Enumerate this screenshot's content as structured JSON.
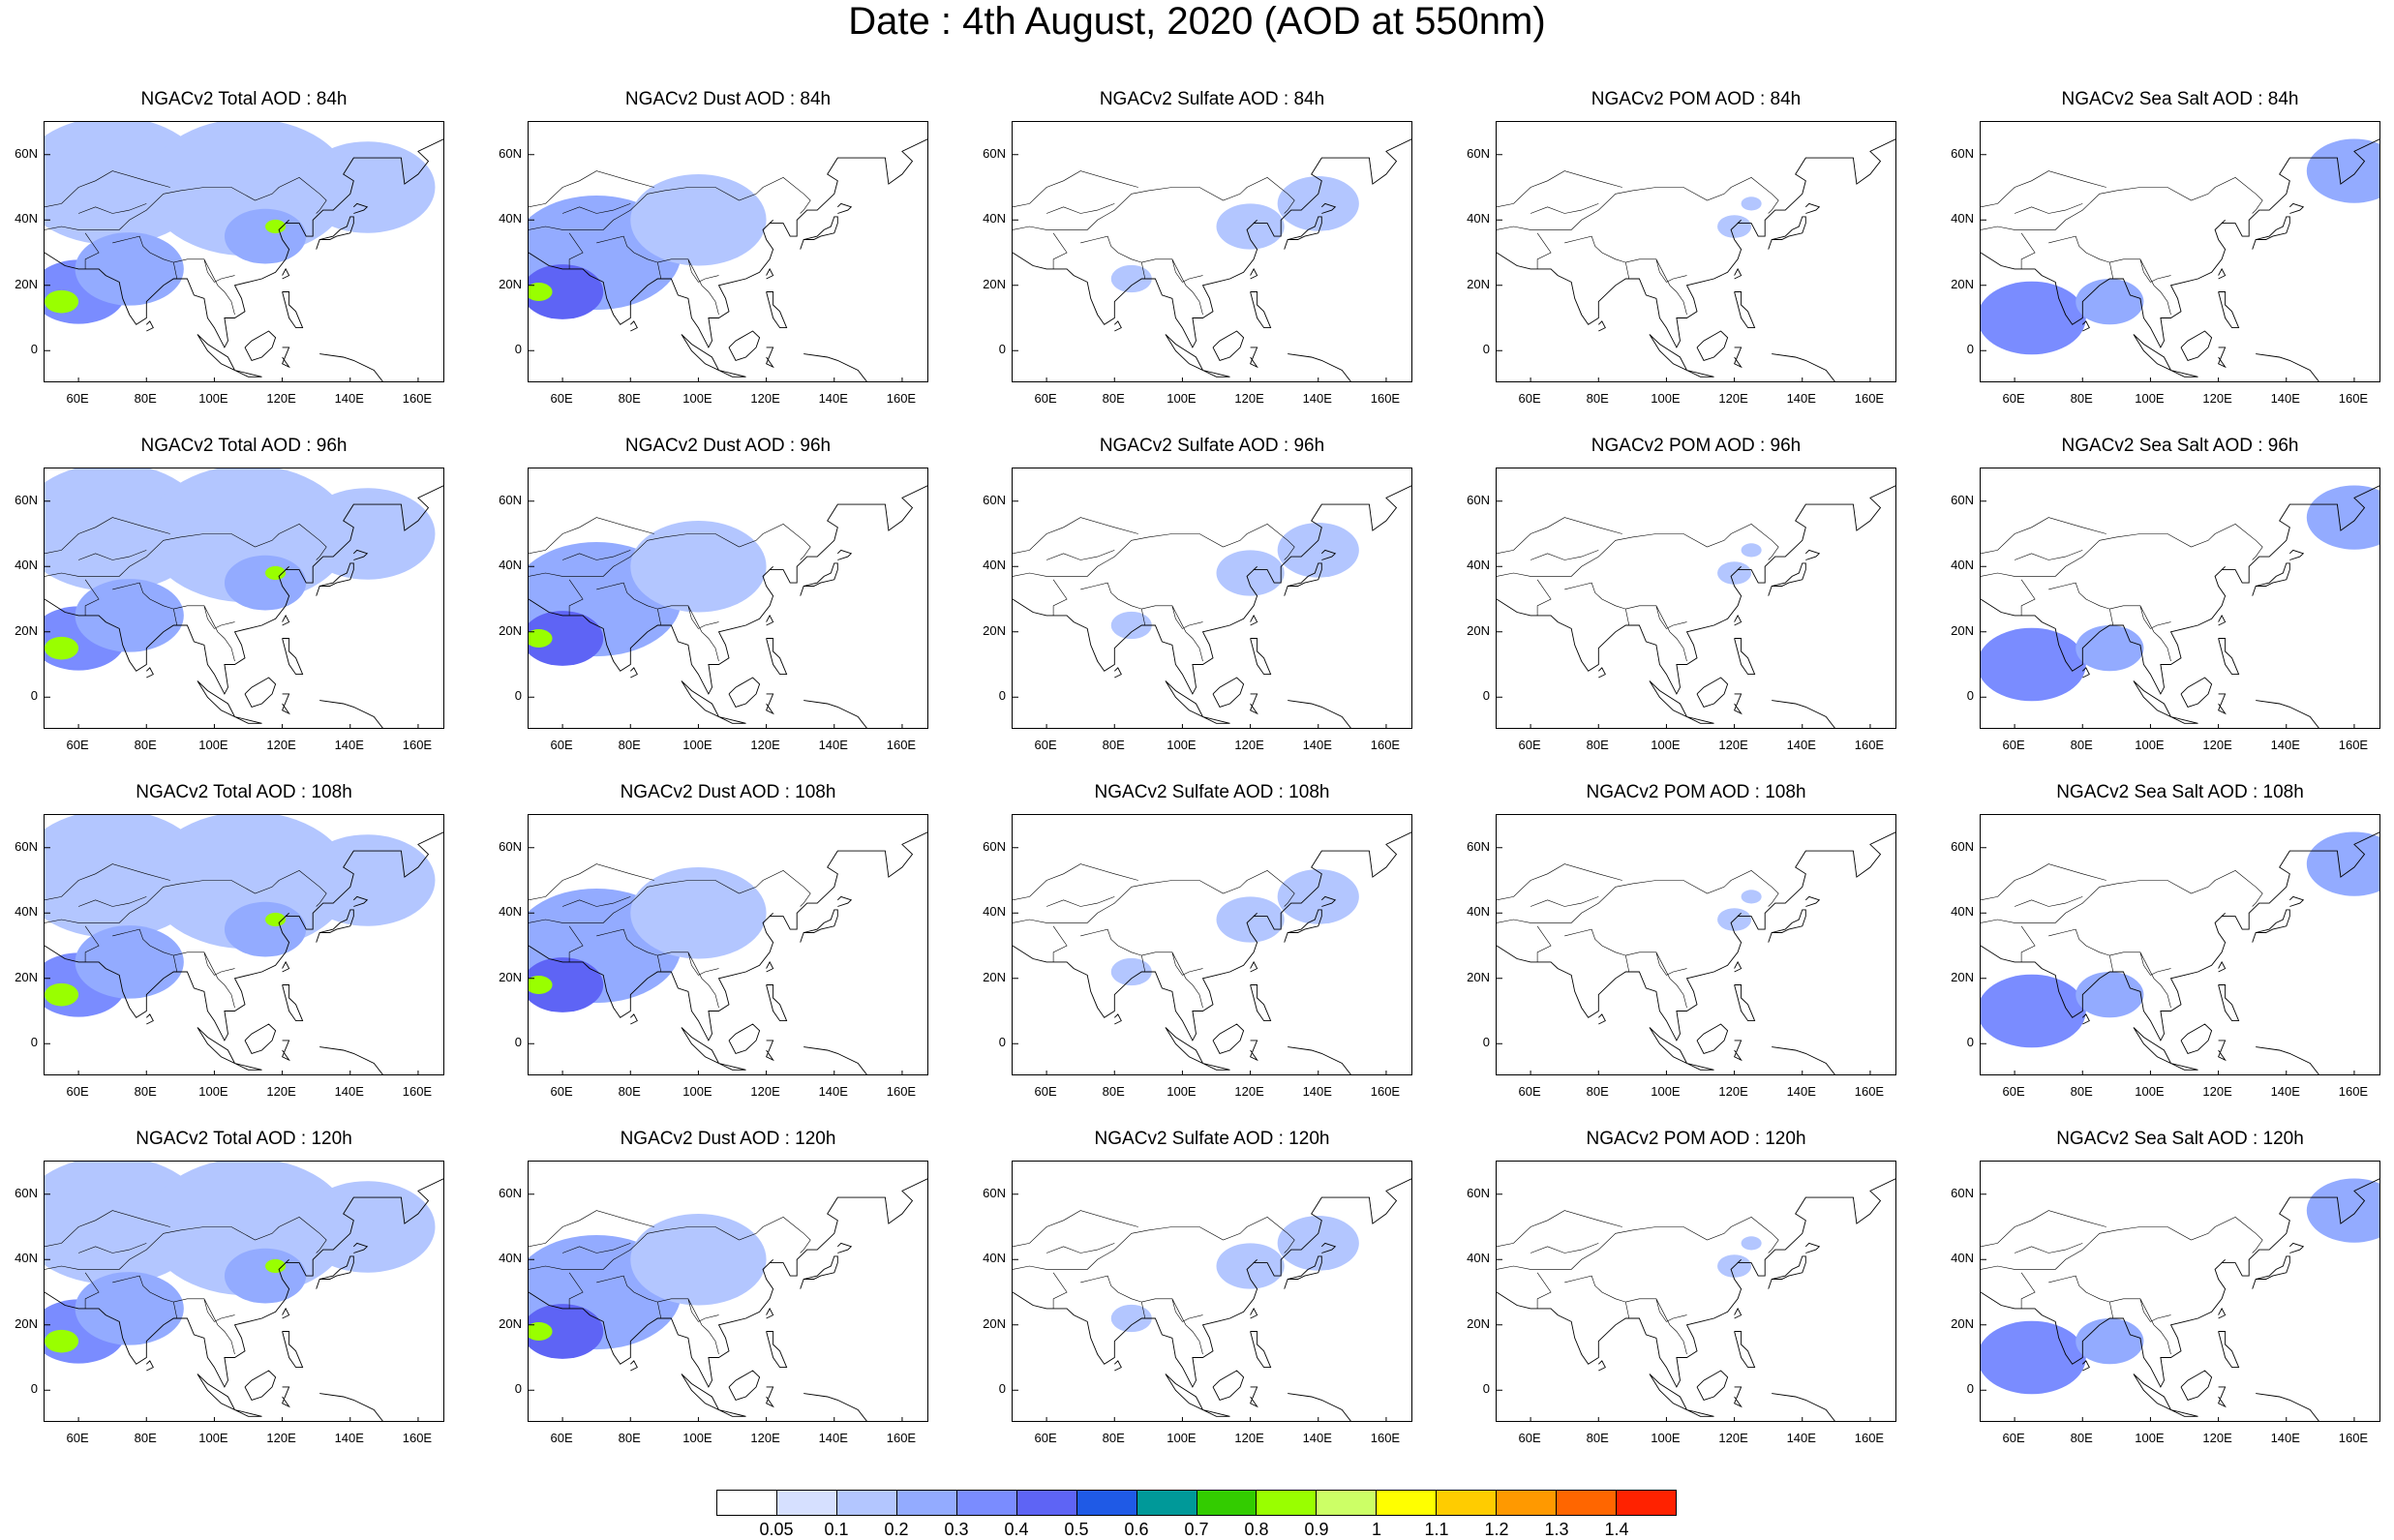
{
  "title": "Date : 4th August, 2020 (AOD at 550nm)",
  "rows": [
    {
      "lead": "84h",
      "panels": [
        {
          "title": "NGACv2 Total AOD : 84h",
          "species": "total"
        },
        {
          "title": "NGACv2 Dust AOD : 84h",
          "species": "dust"
        },
        {
          "title": "NGACv2 Sulfate AOD : 84h",
          "species": "sulfate"
        },
        {
          "title": "NGACv2 POM AOD : 84h",
          "species": "pom"
        },
        {
          "title": "NGACv2 Sea Salt AOD : 84h",
          "species": "seasalt"
        }
      ]
    },
    {
      "lead": "96h",
      "panels": [
        {
          "title": "NGACv2 Total AOD : 96h",
          "species": "total"
        },
        {
          "title": "NGACv2 Dust AOD : 96h",
          "species": "dust"
        },
        {
          "title": "NGACv2 Sulfate AOD : 96h",
          "species": "sulfate"
        },
        {
          "title": "NGACv2 POM AOD : 96h",
          "species": "pom"
        },
        {
          "title": "NGACv2 Sea Salt AOD : 96h",
          "species": "seasalt"
        }
      ]
    },
    {
      "lead": "108h",
      "panels": [
        {
          "title": "NGACv2 Total AOD : 108h",
          "species": "total"
        },
        {
          "title": "NGACv2 Dust AOD : 108h",
          "species": "dust"
        },
        {
          "title": "NGACv2 Sulfate AOD : 108h",
          "species": "sulfate"
        },
        {
          "title": "NGACv2 POM AOD : 108h",
          "species": "pom"
        },
        {
          "title": "NGACv2 Sea Salt AOD : 108h",
          "species": "seasalt"
        }
      ]
    },
    {
      "lead": "120h",
      "panels": [
        {
          "title": "NGACv2 Total AOD : 120h",
          "species": "total"
        },
        {
          "title": "NGACv2 Dust AOD : 120h",
          "species": "dust"
        },
        {
          "title": "NGACv2 Sulfate AOD : 120h",
          "species": "sulfate"
        },
        {
          "title": "NGACv2 POM AOD : 120h",
          "species": "pom"
        },
        {
          "title": "NGACv2 Sea Salt  AOD : 120h",
          "species": "seasalt"
        }
      ]
    }
  ],
  "map_extent": {
    "lon_min": 50,
    "lon_max": 168,
    "lat_min": -10,
    "lat_max": 70
  },
  "lat_ticks": [
    {
      "value": 60,
      "label": "60N"
    },
    {
      "value": 40,
      "label": "40N"
    },
    {
      "value": 20,
      "label": "20N"
    },
    {
      "value": 0,
      "label": "0"
    }
  ],
  "lon_ticks": [
    {
      "value": 60,
      "label": "60E"
    },
    {
      "value": 80,
      "label": "80E"
    },
    {
      "value": 100,
      "label": "100E"
    },
    {
      "value": 120,
      "label": "120E"
    },
    {
      "value": 140,
      "label": "140E"
    },
    {
      "value": 160,
      "label": "160E"
    }
  ],
  "colorbar": {
    "colors": [
      "#ffffff",
      "#d6e0ff",
      "#b3c6ff",
      "#93abff",
      "#7a8cff",
      "#5e64f5",
      "#1f5ae6",
      "#009999",
      "#33cc00",
      "#99ff00",
      "#ccff66",
      "#ffff00",
      "#ffcc00",
      "#ff9900",
      "#ff6600",
      "#ff2200"
    ],
    "labels": [
      "0.05",
      "0.1",
      "0.2",
      "0.3",
      "0.4",
      "0.5",
      "0.6",
      "0.7",
      "0.8",
      "0.9",
      "1",
      "1.1",
      "1.2",
      "1.3",
      "1.4"
    ]
  },
  "aod_fields": {
    "total": [
      {
        "lon": 70,
        "lat": 52,
        "r": 28,
        "aod": 0.15
      },
      {
        "lon": 110,
        "lat": 50,
        "r": 30,
        "aod": 0.15
      },
      {
        "lon": 145,
        "lat": 50,
        "r": 20,
        "aod": 0.15
      },
      {
        "lon": 60,
        "lat": 18,
        "r": 14,
        "aod": 0.35
      },
      {
        "lon": 75,
        "lat": 25,
        "r": 16,
        "aod": 0.25
      },
      {
        "lon": 115,
        "lat": 35,
        "r": 12,
        "aod": 0.25
      },
      {
        "lon": 55,
        "lat": 15,
        "r": 5,
        "aod": 0.85
      },
      {
        "lon": 118,
        "lat": 38,
        "r": 3,
        "aod": 0.8
      }
    ],
    "dust": [
      {
        "lon": 70,
        "lat": 30,
        "r": 25,
        "aod": 0.2
      },
      {
        "lon": 100,
        "lat": 40,
        "r": 20,
        "aod": 0.15
      },
      {
        "lon": 60,
        "lat": 18,
        "r": 12,
        "aod": 0.4
      },
      {
        "lon": 53,
        "lat": 18,
        "r": 4,
        "aod": 0.8
      }
    ],
    "sulfate": [
      {
        "lon": 120,
        "lat": 38,
        "r": 10,
        "aod": 0.15
      },
      {
        "lon": 140,
        "lat": 45,
        "r": 12,
        "aod": 0.1
      },
      {
        "lon": 85,
        "lat": 22,
        "r": 6,
        "aod": 0.1
      }
    ],
    "pom": [
      {
        "lon": 120,
        "lat": 38,
        "r": 5,
        "aod": 0.1
      },
      {
        "lon": 125,
        "lat": 45,
        "r": 3,
        "aod": 0.1
      }
    ],
    "seasalt": [
      {
        "lon": 65,
        "lat": 10,
        "r": 16,
        "aod": 0.3
      },
      {
        "lon": 160,
        "lat": 55,
        "r": 14,
        "aod": 0.25
      },
      {
        "lon": 88,
        "lat": 15,
        "r": 10,
        "aod": 0.2
      }
    ]
  }
}
